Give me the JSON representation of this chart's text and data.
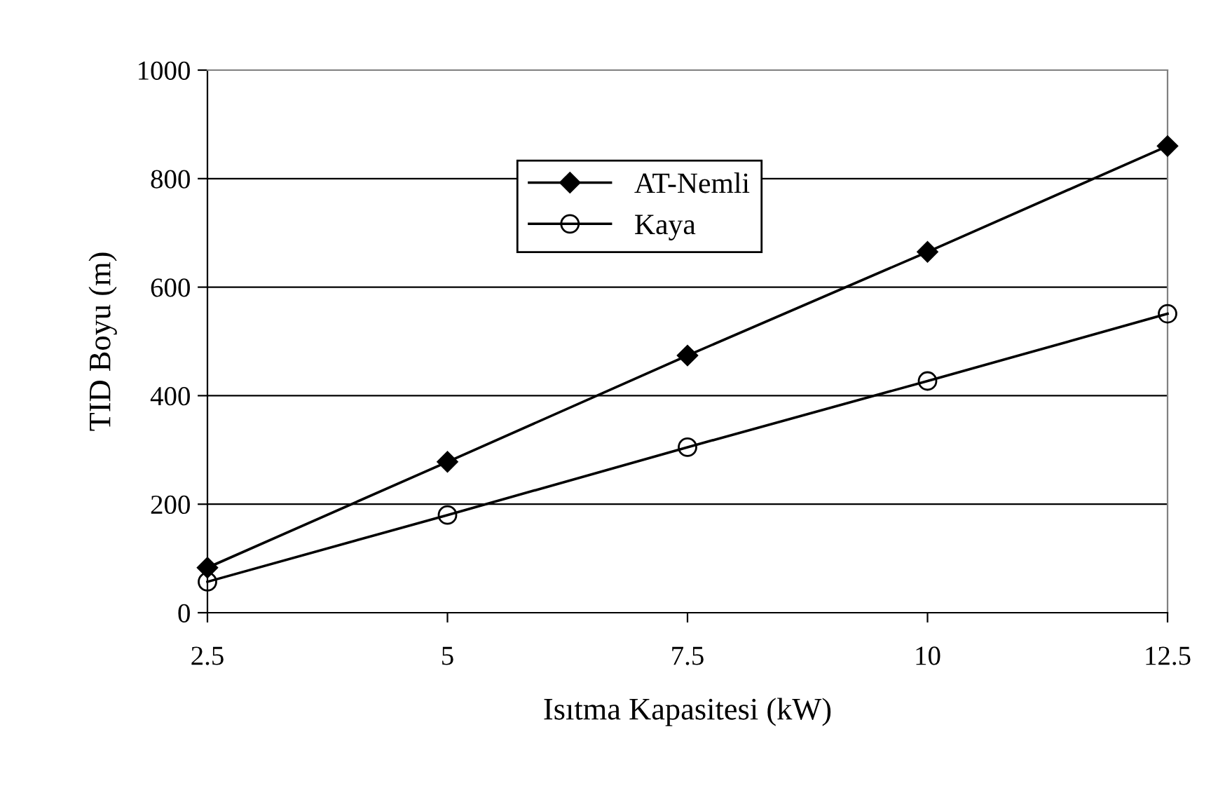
{
  "chart_data": {
    "type": "line",
    "xlabel": "Isıtma Kapasitesi (kW)",
    "ylabel": "TID Boyu (m)",
    "x": [
      2.5,
      5,
      7.5,
      10,
      12.5
    ],
    "series": [
      {
        "name": "AT-Nemli",
        "color": "#000000",
        "marker": "diamond",
        "values": [
          83,
          278,
          474,
          665,
          860
        ]
      },
      {
        "name": "Kaya",
        "color": "#000000",
        "marker": "circle",
        "values": [
          57,
          180,
          305,
          427,
          551
        ]
      }
    ],
    "xlim": [
      2.5,
      12.5
    ],
    "xticks": [
      2.5,
      5,
      7.5,
      10,
      12.5
    ],
    "ylim": [
      0,
      1000
    ],
    "yticks": [
      0,
      200,
      400,
      600,
      800,
      1000
    ],
    "grid": "y",
    "legend": "top",
    "line_style": "solid"
  }
}
